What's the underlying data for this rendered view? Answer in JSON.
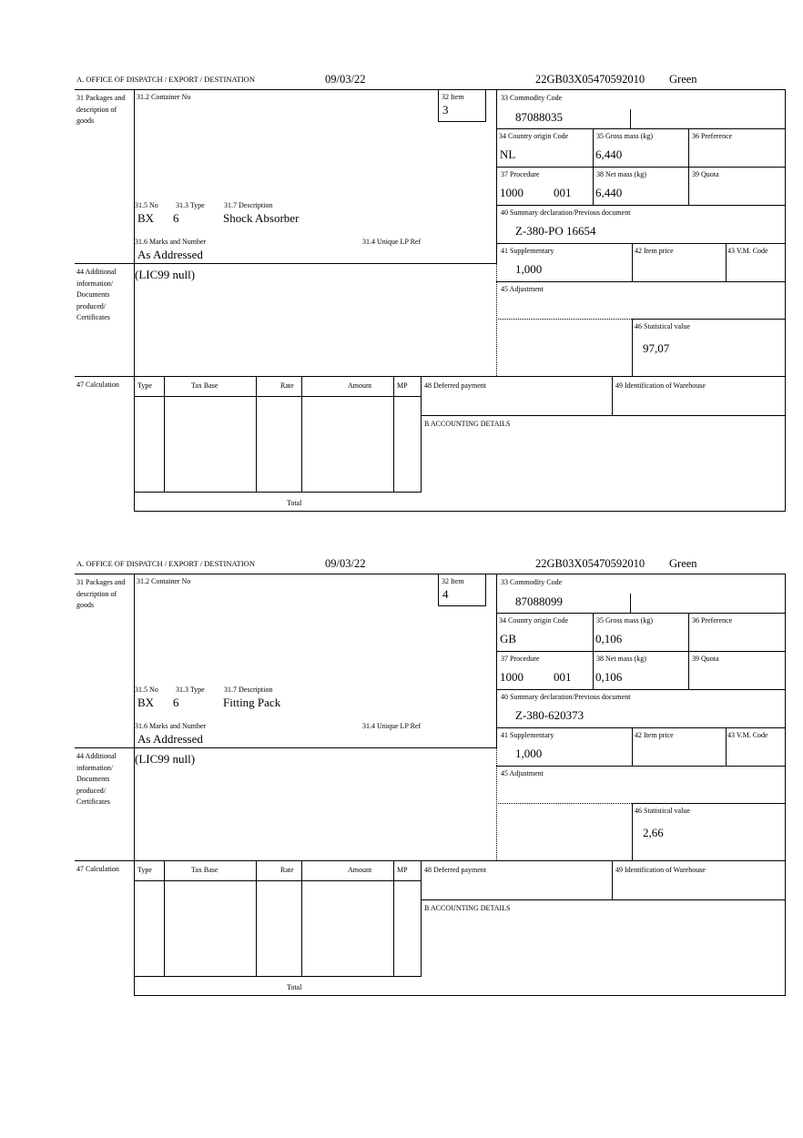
{
  "labels": {
    "office": "A. OFFICE OF DISPATCH / EXPORT / DESTINATION",
    "packages": "31 Packages and description of goods",
    "container": "31.2 Container No",
    "item": "32 Item",
    "no": "31.5 No",
    "type": "31.3 Type",
    "description": "31.7 Description",
    "marks": "31.6 Marks and Number",
    "unique_ref": "31.4 Unique LP Ref",
    "commodity": "33 Commodity Code",
    "country": "34 Country origin Code",
    "gross": "35 Gross mass (kg)",
    "preference": "36 Preference",
    "procedure": "37 Procedure",
    "net": "38 Net mass (kg)",
    "quota": "39 Quota",
    "summary": "40 Summary declaration/Previous document",
    "supplementary": "41 Supplementary",
    "item_price": "42 Item price",
    "vm_code": "43 V.M. Code",
    "additional": "44 Additional information/ Documents produced/ Certificates",
    "adjustment": "45 Adjustment",
    "statistical": "46 Statistical value",
    "calculation": "47 Calculation",
    "col_type": "Type",
    "col_tax_base": "Tax Base",
    "col_rate": "Rate",
    "col_amount": "Amount",
    "col_mp": "MP",
    "total": "Total",
    "deferred": "48 Deferred payment",
    "warehouse": "49 Identification of Warehouse",
    "accounting": "B ACCOUNTING DETAILS"
  },
  "forms": [
    {
      "date": "09/03/22",
      "reference": "22GB03X05470592010",
      "route": "Green",
      "item": "3",
      "pkg_kind": "BX",
      "pkg_count": "6",
      "description": "Shock Absorber",
      "marks": "As Addressed",
      "commodity": "87088035",
      "country": "NL",
      "gross": "6,440",
      "procedure": "1000",
      "procedure_add": "001",
      "net": "6,440",
      "summary": "Z-380-PO 16654",
      "supplementary": "1,000",
      "additional": "(LIC99 null)",
      "statistical": "97,07"
    },
    {
      "date": "09/03/22",
      "reference": "22GB03X05470592010",
      "route": "Green",
      "item": "4",
      "pkg_kind": "BX",
      "pkg_count": "6",
      "description": "Fitting Pack",
      "marks": "As Addressed",
      "commodity": "87088099",
      "country": "GB",
      "gross": "0,106",
      "procedure": "1000",
      "procedure_add": "001",
      "net": "0,106",
      "summary": "Z-380-620373",
      "supplementary": "1,000",
      "additional": "(LIC99 null)",
      "statistical": "2,66"
    }
  ]
}
